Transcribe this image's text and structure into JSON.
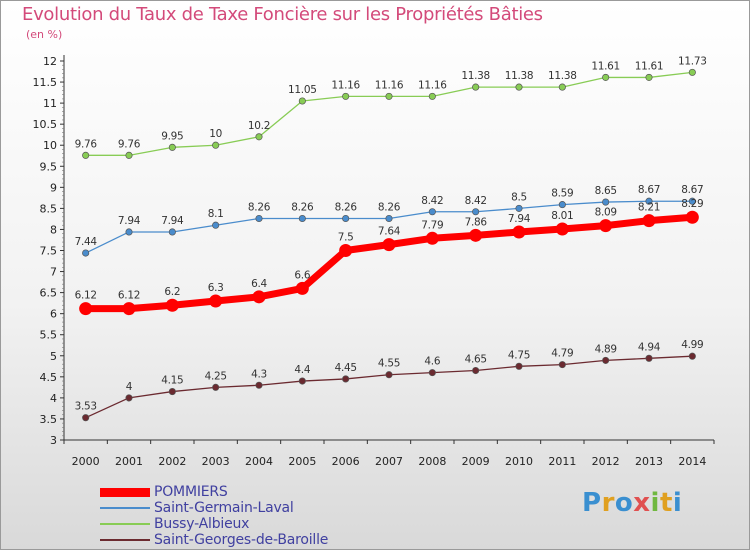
{
  "title": "Evolution du Taux de Taxe Foncière sur les Propriétés Bâties",
  "unit": "(en %)",
  "logo": "Proxiti",
  "chart_data": {
    "type": "line",
    "title": "Evolution du Taux de Taxe Foncière sur les Propriétés Bâties",
    "ylabel": "(en %)",
    "xlabel": "",
    "x": [
      "2000",
      "2001",
      "2002",
      "2003",
      "2004",
      "2005",
      "2006",
      "2007",
      "2008",
      "2009",
      "2010",
      "2011",
      "2012",
      "2013",
      "2014"
    ],
    "ylim": [
      3,
      12
    ],
    "yticks": [
      "3",
      "3.5",
      "4",
      "4.5",
      "5",
      "5.5",
      "6",
      "6.5",
      "7",
      "7.5",
      "8",
      "8.5",
      "9",
      "9.5",
      "10",
      "10.5",
      "11",
      "11.5",
      "12"
    ],
    "grid": false,
    "legend_position": "bottom-left",
    "series": [
      {
        "name": "POMMIERS",
        "color": "#ff0000",
        "values": [
          6.12,
          6.12,
          6.2,
          6.3,
          6.4,
          6.6,
          7.5,
          7.64,
          7.79,
          7.86,
          7.94,
          8.01,
          8.09,
          8.21,
          8.29
        ],
        "labels": [
          "6.12",
          "6.12",
          "6.2",
          "6.3",
          "6.4",
          "6.6",
          "7.5",
          "7.64",
          "7.79",
          "7.86",
          "7.94",
          "8.01",
          "8.09",
          "8.21",
          "8.29"
        ]
      },
      {
        "name": "Saint-Germain-Laval",
        "color": "#4a8ccc",
        "values": [
          7.44,
          7.94,
          7.94,
          8.1,
          8.26,
          8.26,
          8.26,
          8.26,
          8.42,
          8.42,
          8.5,
          8.59,
          8.65,
          8.67,
          8.67
        ],
        "labels": [
          "7.44",
          "7.94",
          "7.94",
          "8.1",
          "8.26",
          "8.26",
          "8.26",
          "8.26",
          "8.42",
          "8.42",
          "8.5",
          "8.59",
          "8.65",
          "8.67",
          "8.67"
        ]
      },
      {
        "name": "Bussy-Albieux",
        "color": "#88cc55",
        "values": [
          9.76,
          9.76,
          9.95,
          10,
          10.2,
          11.05,
          11.16,
          11.16,
          11.16,
          11.38,
          11.38,
          11.38,
          11.61,
          11.61,
          11.73
        ],
        "labels": [
          "9.76",
          "9.76",
          "9.95",
          "10",
          "10.2",
          "11.05",
          "11.16",
          "11.16",
          "11.16",
          "11.38",
          "11.38",
          "11.38",
          "11.61",
          "11.61",
          "11.73"
        ]
      },
      {
        "name": "Saint-Georges-de-Baroille",
        "color": "#6b2a30",
        "values": [
          3.53,
          4,
          4.15,
          4.25,
          4.3,
          4.4,
          4.45,
          4.55,
          4.6,
          4.65,
          4.75,
          4.79,
          4.89,
          4.94,
          4.99
        ],
        "labels": [
          "3.53",
          "4",
          "4.15",
          "4.25",
          "4.3",
          "4.4",
          "4.45",
          "4.55",
          "4.6",
          "4.65",
          "4.75",
          "4.79",
          "4.89",
          "4.94",
          "4.99"
        ]
      }
    ]
  }
}
